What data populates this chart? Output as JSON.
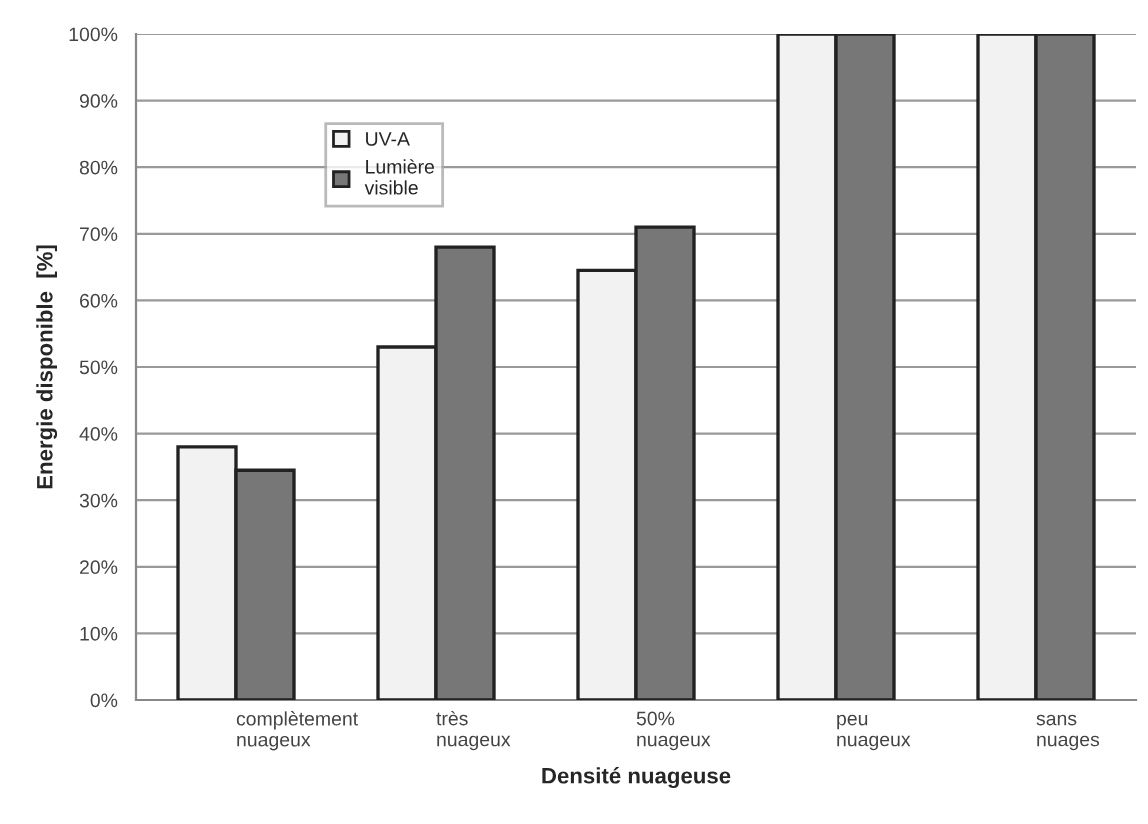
{
  "chart_data": {
    "type": "bar",
    "xlabel": "Densité nuageuse",
    "ylabel": "Energie disponible  [%]",
    "categories": [
      "complètement nuageux",
      "très nuageux",
      "50% nuageux",
      "peu nuageux",
      "sans nuages"
    ],
    "series": [
      {
        "name": "UV-A",
        "color": "#f2f2f2",
        "values": [
          38,
          53,
          64.5,
          100,
          100
        ]
      },
      {
        "name": "Lumière visible",
        "color": "#777777",
        "values": [
          34.5,
          68,
          71,
          100,
          100
        ]
      }
    ],
    "ylim": [
      0,
      100
    ],
    "yticks": [
      {
        "value": 0,
        "label": "0%"
      },
      {
        "value": 10,
        "label": "10%"
      },
      {
        "value": 20,
        "label": "20%"
      },
      {
        "value": 30,
        "label": "30%"
      },
      {
        "value": 40,
        "label": "40%"
      },
      {
        "value": 50,
        "label": "50%"
      },
      {
        "value": 60,
        "label": "60%"
      },
      {
        "value": 70,
        "label": "70%"
      },
      {
        "value": 80,
        "label": "80%"
      },
      {
        "value": 90,
        "label": "90%"
      },
      {
        "value": 100,
        "label": "100%"
      }
    ],
    "grid": "y",
    "legend": "top left"
  }
}
